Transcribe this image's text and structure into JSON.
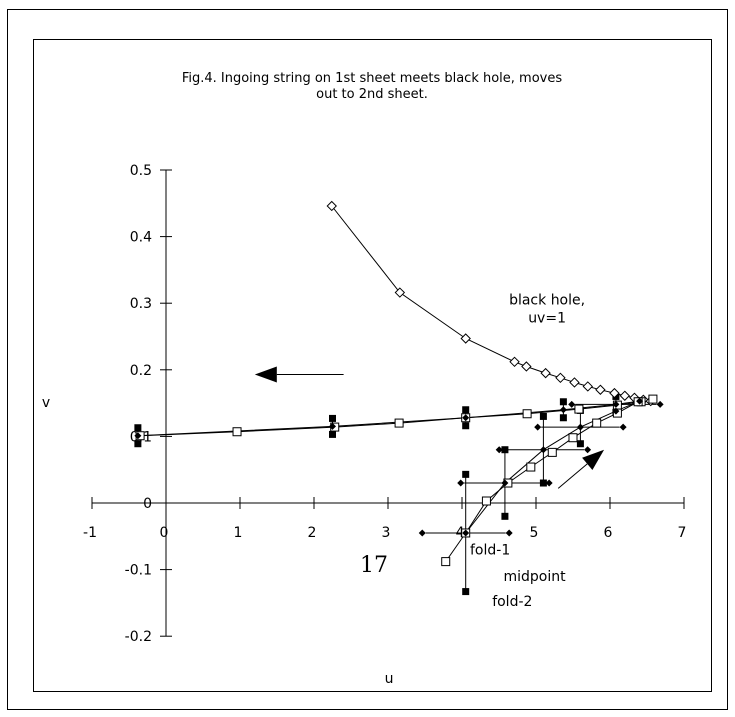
{
  "chart_data": {
    "type": "scatter",
    "title_lines": [
      "Fig.4. Ingoing string on 1st sheet meets black hole, moves",
      "out to 2nd sheet."
    ],
    "xlabel": "u",
    "ylabel": "v",
    "xlim": [
      -1,
      7
    ],
    "ylim": [
      -0.2,
      0.5
    ],
    "x_ticks": [
      -1,
      0,
      1,
      2,
      3,
      4,
      5,
      6,
      7
    ],
    "y_ticks": [
      -0.2,
      -0.1,
      0,
      0.1,
      0.2,
      0.3,
      0.4,
      0.5
    ],
    "x_tick_labels": [
      "-1",
      "0",
      "1",
      "2",
      "3",
      "4",
      "5",
      "6",
      "7"
    ],
    "y_tick_labels": [
      "-0.2",
      "-0.1",
      "0",
      "0.1",
      "0.2",
      "0.3",
      "0.4",
      "0.5"
    ],
    "grid": false,
    "series": [
      {
        "marker": "diamond-open",
        "points": [
          [
            2.24,
            0.446
          ],
          [
            3.16,
            0.316
          ],
          [
            4.05,
            0.247
          ],
          [
            4.71,
            0.212
          ],
          [
            4.87,
            0.205
          ],
          [
            5.13,
            0.195
          ],
          [
            5.33,
            0.188
          ],
          [
            5.52,
            0.181
          ],
          [
            5.7,
            0.175
          ],
          [
            5.87,
            0.17
          ],
          [
            6.06,
            0.165
          ],
          [
            6.2,
            0.161
          ],
          [
            6.33,
            0.158
          ],
          [
            6.45,
            0.155
          ],
          [
            6.55,
            0.153
          ]
        ]
      },
      {
        "marker": "square-open",
        "points": [
          [
            -0.35,
            0.101
          ],
          [
            0.96,
            0.107
          ],
          [
            2.28,
            0.114
          ],
          [
            3.15,
            0.12
          ],
          [
            4.05,
            0.128
          ],
          [
            4.88,
            0.134
          ],
          [
            5.58,
            0.141
          ],
          [
            6.1,
            0.147
          ],
          [
            6.42,
            0.152
          ],
          [
            6.58,
            0.156
          ],
          [
            6.38,
            0.152
          ],
          [
            6.1,
            0.135
          ],
          [
            5.82,
            0.12
          ],
          [
            5.5,
            0.098
          ],
          [
            5.22,
            0.076
          ],
          [
            4.93,
            0.054
          ],
          [
            4.62,
            0.03
          ],
          [
            4.33,
            0.003
          ],
          [
            4.05,
            -0.045
          ],
          [
            3.78,
            -0.088
          ]
        ]
      },
      {
        "marker": "diamond-filled",
        "points": [
          [
            -0.38,
            0.101
          ],
          [
            2.25,
            0.115
          ],
          [
            4.05,
            0.128
          ],
          [
            5.37,
            0.14
          ],
          [
            6.08,
            0.148
          ],
          [
            6.4,
            0.153
          ],
          [
            6.08,
            0.138
          ],
          [
            5.6,
            0.114
          ],
          [
            5.1,
            0.08
          ],
          [
            4.58,
            0.03
          ],
          [
            4.05,
            -0.045
          ]
        ]
      }
    ],
    "error_bars": [
      {
        "x": -0.38,
        "y": 0.101,
        "xerr": 0,
        "yerr": 0.012
      },
      {
        "x": 2.25,
        "y": 0.115,
        "xerr": 0,
        "yerr": 0.012
      },
      {
        "x": 4.05,
        "y": 0.128,
        "xerr": 0,
        "yerr": 0.012
      },
      {
        "x": 5.37,
        "y": 0.14,
        "xerr": 0,
        "yerr": 0.012
      },
      {
        "x": 6.08,
        "y": 0.148,
        "xerr": 0.55,
        "yerr": 0.012
      },
      {
        "x": 5.6,
        "y": 0.114,
        "xerr": 0.53,
        "yerr": 0.025
      },
      {
        "x": 5.1,
        "y": 0.08,
        "xerr": 0.55,
        "yerr": 0.05
      },
      {
        "x": 4.58,
        "y": 0.03,
        "xerr": 0.55,
        "yerr": 0.05
      },
      {
        "x": 4.05,
        "y": -0.045,
        "xerr": 0.54,
        "yerr": 0.088
      }
    ],
    "annotations": [
      {
        "lines": [
          "black hole,",
          "uv=1"
        ],
        "x": 5.15,
        "y": 0.298
      },
      {
        "lines": [
          "fold-1"
        ],
        "x": 4.38,
        "y": -0.077
      },
      {
        "lines": [
          "midpoint"
        ],
        "x": 4.98,
        "y": -0.117
      },
      {
        "lines": [
          "fold-2"
        ],
        "x": 4.68,
        "y": -0.155
      }
    ],
    "arrows": [
      {
        "from": [
          2.4,
          0.193
        ],
        "to": [
          1.2,
          0.193
        ]
      },
      {
        "from": [
          5.3,
          0.022
        ],
        "to": [
          5.92,
          0.08
        ]
      }
    ],
    "page_number": "17"
  }
}
